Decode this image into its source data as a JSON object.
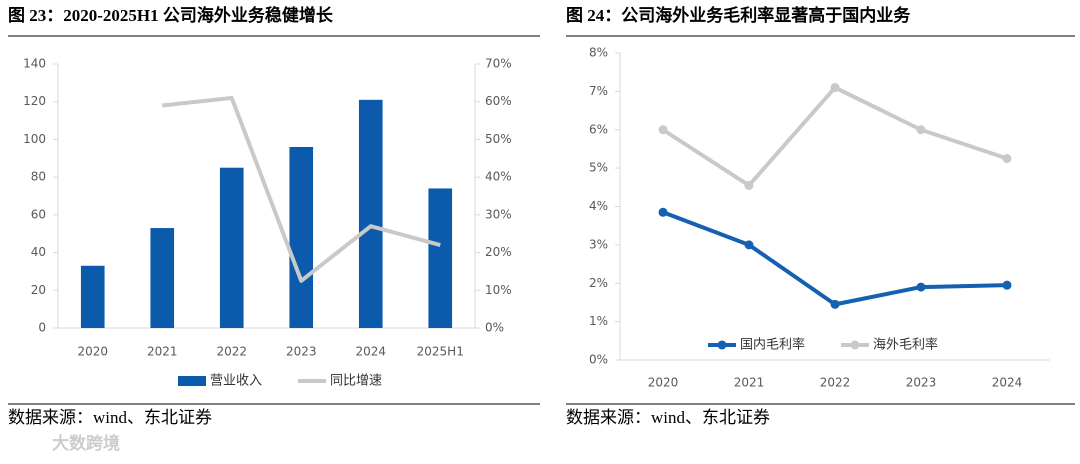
{
  "charts": [
    {
      "chart_data": {
        "type": "bar",
        "title": "图 23：2020-2025H1 公司海外业务稳健增长",
        "categories": [
          "2020",
          "2021",
          "2022",
          "2023",
          "2024",
          "2025H1"
        ],
        "series": [
          {
            "name": "营业收入",
            "type": "bar",
            "color": "#0b5aab",
            "values": [
              33,
              53,
              85,
              96,
              121,
              74
            ]
          },
          {
            "name": "同比增速",
            "type": "line",
            "axis": "y2",
            "color": "#c9c9c9",
            "values": [
              null,
              59,
              61,
              12.5,
              27,
              22
            ]
          }
        ],
        "ylim": [
          0,
          140
        ],
        "yticks": [
          0,
          20,
          40,
          60,
          80,
          100,
          120,
          140
        ],
        "y2lim": [
          0,
          70
        ],
        "y2ticks": [
          {
            "value": 0,
            "label": "0%"
          },
          {
            "value": 10,
            "label": "10%"
          },
          {
            "value": 20,
            "label": "20%"
          },
          {
            "value": 30,
            "label": "30%"
          },
          {
            "value": 40,
            "label": "40%"
          },
          {
            "value": 50,
            "label": "50%"
          },
          {
            "value": 60,
            "label": "60%"
          },
          {
            "value": 70,
            "label": "70%"
          }
        ],
        "legend": "bottom",
        "grid": false,
        "source": "数据来源：wind、东北证券"
      }
    },
    {
      "chart_data": {
        "type": "line",
        "title": "图 24：公司海外业务毛利率显著高于国内业务",
        "categories": [
          "2020",
          "2021",
          "2022",
          "2023",
          "2024"
        ],
        "series": [
          {
            "name": "国内毛利率",
            "color": "#1361b0",
            "values": [
              3.85,
              3.0,
              1.45,
              1.9,
              1.95
            ]
          },
          {
            "name": "海外毛利率",
            "color": "#c9c9c9",
            "values": [
              6.0,
              4.55,
              7.1,
              6.0,
              5.25
            ]
          }
        ],
        "ylim": [
          0,
          8
        ],
        "yticks": [
          {
            "value": 0,
            "label": "0%"
          },
          {
            "value": 1,
            "label": "1%"
          },
          {
            "value": 2,
            "label": "2%"
          },
          {
            "value": 3,
            "label": "3%"
          },
          {
            "value": 4,
            "label": "4%"
          },
          {
            "value": 5,
            "label": "5%"
          },
          {
            "value": 6,
            "label": "6%"
          },
          {
            "value": 7,
            "label": "7%"
          },
          {
            "value": 8,
            "label": "8%"
          }
        ],
        "legend": "lower left",
        "grid": false,
        "markers": true,
        "source": "数据来源：wind、东北证券"
      }
    }
  ],
  "watermark": "大数跨境"
}
